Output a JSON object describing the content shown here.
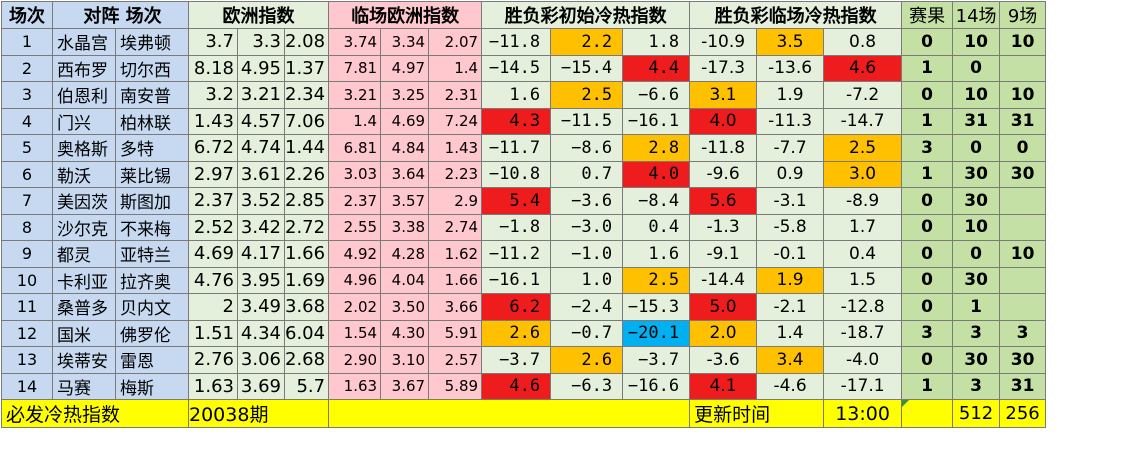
{
  "headers": {
    "idx": "场次",
    "match": "对阵 场次",
    "europe": "欧洲指数",
    "live_europe": "临场欧洲指数",
    "cold_hot_init": "胜负彩初始冷热指数",
    "cold_hot_live": "胜负彩临场冷热指数",
    "result": "赛果",
    "f14": "14场",
    "f9": "9场"
  },
  "rows": [
    {
      "idx": "1",
      "home": "水晶宫",
      "away": "埃弗顿",
      "ou": [
        "3.7",
        "3.3",
        "2.08"
      ],
      "ls": [
        "3.74",
        "3.34",
        "2.07"
      ],
      "cr": [
        "−11.8",
        "2.2",
        "1.8"
      ],
      "rt": [
        "-10.9",
        "3.5",
        "0.8"
      ],
      "res": "0",
      "f14": "10",
      "f9": "10"
    },
    {
      "idx": "2",
      "home": "西布罗",
      "away": "切尔西",
      "ou": [
        "8.18",
        "4.95",
        "1.37"
      ],
      "ls": [
        "7.81",
        "4.97",
        "1.4"
      ],
      "cr": [
        "−14.5",
        "−15.4",
        "4.4"
      ],
      "rt": [
        "-17.3",
        "-13.6",
        "4.6"
      ],
      "res": "1",
      "f14": "0",
      "f9": ""
    },
    {
      "idx": "3",
      "home": "伯恩利",
      "away": "南安普",
      "ou": [
        "3.2",
        "3.21",
        "2.34"
      ],
      "ls": [
        "3.21",
        "3.25",
        "2.31"
      ],
      "cr": [
        "1.6",
        "2.5",
        "−6.6"
      ],
      "rt": [
        "3.1",
        "1.9",
        "-7.2"
      ],
      "res": "0",
      "f14": "10",
      "f9": "10"
    },
    {
      "idx": "4",
      "home": "门兴",
      "away": "柏林联",
      "ou": [
        "1.43",
        "4.57",
        "7.06"
      ],
      "ls": [
        "1.4",
        "4.69",
        "7.24"
      ],
      "cr": [
        "4.3",
        "−11.5",
        "−16.1"
      ],
      "rt": [
        "4.0",
        "-11.3",
        "-14.7"
      ],
      "res": "1",
      "f14": "31",
      "f9": "31"
    },
    {
      "idx": "5",
      "home": "奥格斯",
      "away": "多特",
      "ou": [
        "6.72",
        "4.74",
        "1.44"
      ],
      "ls": [
        "6.81",
        "4.84",
        "1.43"
      ],
      "cr": [
        "−11.7",
        "−8.6",
        "2.8"
      ],
      "rt": [
        "-11.8",
        "-7.7",
        "2.5"
      ],
      "res": "3",
      "f14": "0",
      "f9": "0"
    },
    {
      "idx": "6",
      "home": "勒沃",
      "away": "莱比锡",
      "ou": [
        "2.97",
        "3.61",
        "2.26"
      ],
      "ls": [
        "3.03",
        "3.64",
        "2.23"
      ],
      "cr": [
        "−10.8",
        "0.7",
        "4.0"
      ],
      "rt": [
        "-9.6",
        "0.9",
        "3.0"
      ],
      "res": "1",
      "f14": "30",
      "f9": "30"
    },
    {
      "idx": "7",
      "home": "美因茨",
      "away": "斯图加",
      "ou": [
        "2.37",
        "3.52",
        "2.85"
      ],
      "ls": [
        "2.37",
        "3.57",
        "2.9"
      ],
      "cr": [
        "5.4",
        "−3.6",
        "−8.4"
      ],
      "rt": [
        "5.6",
        "-3.1",
        "-8.9"
      ],
      "res": "0",
      "f14": "30",
      "f9": ""
    },
    {
      "idx": "8",
      "home": "沙尔克",
      "away": "不来梅",
      "ou": [
        "2.52",
        "3.42",
        "2.72"
      ],
      "ls": [
        "2.55",
        "3.38",
        "2.74"
      ],
      "cr": [
        "−1.8",
        "−3.0",
        "0.4"
      ],
      "rt": [
        "-1.3",
        "-5.8",
        "1.7"
      ],
      "res": "0",
      "f14": "10",
      "f9": ""
    },
    {
      "idx": "9",
      "home": "都灵",
      "away": "亚特兰",
      "ou": [
        "4.69",
        "4.17",
        "1.66"
      ],
      "ls": [
        "4.92",
        "4.28",
        "1.62"
      ],
      "cr": [
        "−11.2",
        "−1.0",
        "1.6"
      ],
      "rt": [
        "-9.1",
        "-0.1",
        "0.4"
      ],
      "res": "0",
      "f14": "0",
      "f9": "10"
    },
    {
      "idx": "10",
      "home": "卡利亚",
      "away": "拉齐奥",
      "ou": [
        "4.76",
        "3.95",
        "1.69"
      ],
      "ls": [
        "4.96",
        "4.04",
        "1.66"
      ],
      "cr": [
        "−16.1",
        "1.0",
        "2.5"
      ],
      "rt": [
        "-14.4",
        "1.9",
        "1.5"
      ],
      "res": "0",
      "f14": "30",
      "f9": ""
    },
    {
      "idx": "11",
      "home": "桑普多",
      "away": "贝内文",
      "ou": [
        "2",
        "3.49",
        "3.68"
      ],
      "ls": [
        "2.02",
        "3.50",
        "3.66"
      ],
      "cr": [
        "6.2",
        "−2.4",
        "−15.3"
      ],
      "rt": [
        "5.0",
        "-2.1",
        "-12.8"
      ],
      "res": "0",
      "f14": "1",
      "f9": ""
    },
    {
      "idx": "12",
      "home": "国米",
      "away": "佛罗伦",
      "ou": [
        "1.51",
        "4.34",
        "6.04"
      ],
      "ls": [
        "1.54",
        "4.30",
        "5.91"
      ],
      "cr": [
        "2.6",
        "−0.7",
        "−20.1"
      ],
      "rt": [
        "2.0",
        "1.4",
        "-18.7"
      ],
      "res": "3",
      "f14": "3",
      "f9": "3"
    },
    {
      "idx": "13",
      "home": "埃蒂安",
      "away": "雷恩",
      "ou": [
        "2.76",
        "3.06",
        "2.68"
      ],
      "ls": [
        "2.90",
        "3.10",
        "2.57"
      ],
      "cr": [
        "−3.7",
        "2.6",
        "−3.7"
      ],
      "rt": [
        "-3.6",
        "3.4",
        "-4.0"
      ],
      "res": "0",
      "f14": "30",
      "f9": "30"
    },
    {
      "idx": "14",
      "home": "马赛",
      "away": "梅斯",
      "ou": [
        "1.63",
        "3.69",
        "5.7"
      ],
      "ls": [
        "1.63",
        "3.67",
        "5.89"
      ],
      "cr": [
        "4.6",
        "−6.3",
        "−16.6"
      ],
      "rt": [
        "4.1",
        "-4.6",
        "-17.1"
      ],
      "res": "1",
      "f14": "3",
      "f9": "31"
    }
  ],
  "highlights": {
    "cr": [
      [
        null,
        "orange",
        null
      ],
      [
        null,
        null,
        "red"
      ],
      [
        null,
        "orange",
        null
      ],
      [
        "red",
        null,
        null
      ],
      [
        null,
        null,
        "orange"
      ],
      [
        null,
        null,
        "red"
      ],
      [
        "red",
        null,
        null
      ],
      [
        null,
        null,
        null
      ],
      [
        null,
        null,
        null
      ],
      [
        null,
        null,
        "orange"
      ],
      [
        "red",
        null,
        null
      ],
      [
        "orange",
        null,
        "blue"
      ],
      [
        null,
        "orange",
        null
      ],
      [
        "red",
        null,
        null
      ]
    ],
    "rt": [
      [
        null,
        "orange",
        null
      ],
      [
        null,
        null,
        "red"
      ],
      [
        "orange",
        null,
        null
      ],
      [
        "red",
        null,
        null
      ],
      [
        null,
        null,
        "orange"
      ],
      [
        null,
        null,
        "orange"
      ],
      [
        "red",
        null,
        null
      ],
      [
        null,
        null,
        null
      ],
      [
        null,
        null,
        null
      ],
      [
        null,
        "orange",
        null
      ],
      [
        "red",
        null,
        null
      ],
      [
        "orange",
        null,
        null
      ],
      [
        null,
        "orange",
        null
      ],
      [
        "red",
        null,
        null
      ]
    ]
  },
  "footer": {
    "title": "必发冷热指数",
    "period": "20038期",
    "update_label": "更新时间",
    "update_time": "13:00",
    "count14": "512",
    "count9": "256"
  },
  "colors": {
    "red": "#ee1c1c",
    "orange": "#ffc000",
    "blue": "#00b0f0",
    "header_blue": "#c6d9f1",
    "green_light": "#e4efdc",
    "pink": "#ffc7ce",
    "green_result": "#c5e0a5",
    "footer_yellow": "#ffff00"
  }
}
